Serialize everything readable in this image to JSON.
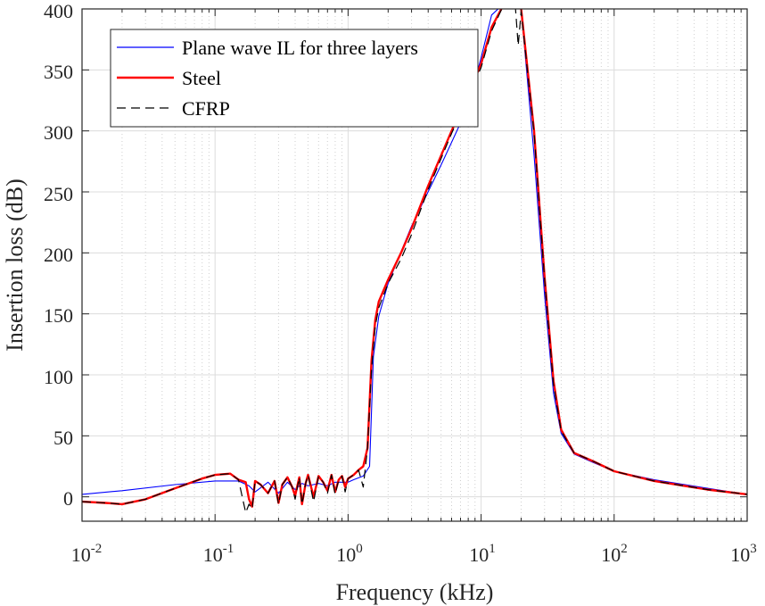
{
  "chart_data": {
    "type": "line",
    "title": "",
    "xlabel": "Frequency (kHz)",
    "ylabel": "Insertion loss (dB)",
    "xscale": "log",
    "xlim": [
      0.01,
      1000
    ],
    "ylim": [
      -20,
      400
    ],
    "x_tick_labels": [
      {
        "base": "10",
        "exp": "-2",
        "value": 0.01
      },
      {
        "base": "10",
        "exp": "-1",
        "value": 0.1
      },
      {
        "base": "10",
        "exp": "0",
        "value": 1
      },
      {
        "base": "10",
        "exp": "1",
        "value": 10
      },
      {
        "base": "10",
        "exp": "2",
        "value": 100
      },
      {
        "base": "10",
        "exp": "3",
        "value": 1000
      }
    ],
    "y_ticks": [
      0,
      50,
      100,
      150,
      200,
      250,
      300,
      350,
      400
    ],
    "grid": true,
    "legend_position": "top-left",
    "series": [
      {
        "name": "Plane wave IL for three layers",
        "color": "#0000ff",
        "style": "solid",
        "x": [
          0.01,
          0.02,
          0.05,
          0.1,
          0.15,
          0.18,
          0.2,
          0.25,
          0.3,
          0.35,
          0.4,
          0.45,
          0.5,
          0.6,
          0.7,
          0.8,
          0.9,
          1.0,
          1.1,
          1.3,
          1.45,
          1.55,
          1.7,
          2.0,
          3.0,
          5.0,
          8.0,
          10.0,
          12.0,
          15.0,
          18.0,
          20.0,
          25.0,
          30.0,
          35.0,
          40.0,
          50.0,
          70.0,
          100.0,
          200.0,
          500.0,
          1000.0
        ],
        "values": [
          2,
          5,
          10,
          13,
          13,
          9,
          4,
          12,
          3,
          12,
          6,
          11,
          9,
          11,
          9,
          12,
          12,
          12,
          14,
          17,
          25,
          115,
          148,
          175,
          222,
          272,
          320,
          360,
          395,
          405,
          405,
          400,
          280,
          165,
          85,
          52,
          35,
          28,
          21,
          14,
          7,
          2
        ]
      },
      {
        "name": "Steel",
        "color": "#ff0000",
        "style": "solid",
        "x": [
          0.01,
          0.015,
          0.02,
          0.03,
          0.05,
          0.08,
          0.1,
          0.13,
          0.15,
          0.17,
          0.18,
          0.19,
          0.2,
          0.22,
          0.25,
          0.28,
          0.3,
          0.32,
          0.35,
          0.38,
          0.4,
          0.43,
          0.45,
          0.48,
          0.5,
          0.55,
          0.6,
          0.65,
          0.7,
          0.75,
          0.8,
          0.85,
          0.9,
          0.95,
          1.0,
          1.1,
          1.2,
          1.3,
          1.4,
          1.5,
          1.6,
          1.7,
          2.0,
          2.5,
          3.0,
          4.0,
          6.0,
          8.0,
          10.0,
          12.0,
          15.0,
          18.0,
          20.0,
          25.0,
          30.0,
          35.0,
          40.0,
          50.0,
          70.0,
          100.0,
          200.0,
          500.0,
          1000.0
        ],
        "values": [
          -4,
          -5,
          -6,
          -2,
          7,
          15,
          18,
          19,
          14,
          12,
          -2,
          -8,
          13,
          10,
          3,
          13,
          -5,
          10,
          16,
          8,
          1,
          16,
          -6,
          11,
          18,
          0,
          17,
          12,
          5,
          18,
          4,
          14,
          17,
          8,
          15,
          18,
          22,
          25,
          40,
          112,
          145,
          160,
          178,
          200,
          220,
          255,
          300,
          330,
          355,
          385,
          405,
          405,
          400,
          300,
          180,
          95,
          55,
          36,
          29,
          21,
          13,
          6,
          2
        ]
      },
      {
        "name": "CFRP",
        "color": "#000000",
        "style": "dashed",
        "x": [
          0.01,
          0.015,
          0.02,
          0.03,
          0.05,
          0.08,
          0.1,
          0.13,
          0.15,
          0.16,
          0.17,
          0.18,
          0.19,
          0.2,
          0.22,
          0.25,
          0.28,
          0.3,
          0.32,
          0.35,
          0.38,
          0.4,
          0.43,
          0.45,
          0.48,
          0.5,
          0.55,
          0.6,
          0.65,
          0.7,
          0.75,
          0.8,
          0.85,
          0.9,
          0.95,
          1.0,
          1.1,
          1.2,
          1.3,
          1.4,
          1.5,
          1.6,
          1.7,
          2.0,
          2.5,
          3.0,
          3.5,
          4.0,
          6.0,
          8.0,
          10.0,
          12.0,
          15.0,
          18.0,
          19.0,
          20.0,
          25.0,
          30.0,
          35.0,
          40.0,
          50.0,
          70.0,
          100.0,
          200.0,
          500.0,
          1000.0
        ],
        "values": [
          -4,
          -5,
          -6,
          -2,
          7,
          15,
          18,
          19,
          14,
          0,
          -13,
          -6,
          -10,
          13,
          10,
          3,
          13,
          -6,
          10,
          16,
          8,
          -2,
          16,
          -6,
          11,
          18,
          -4,
          17,
          12,
          3,
          18,
          2,
          14,
          17,
          4,
          15,
          18,
          22,
          8,
          40,
          105,
          140,
          155,
          175,
          195,
          215,
          235,
          252,
          298,
          328,
          352,
          382,
          405,
          405,
          370,
          398,
          298,
          178,
          92,
          54,
          36,
          29,
          21,
          13,
          6,
          2
        ]
      }
    ]
  }
}
